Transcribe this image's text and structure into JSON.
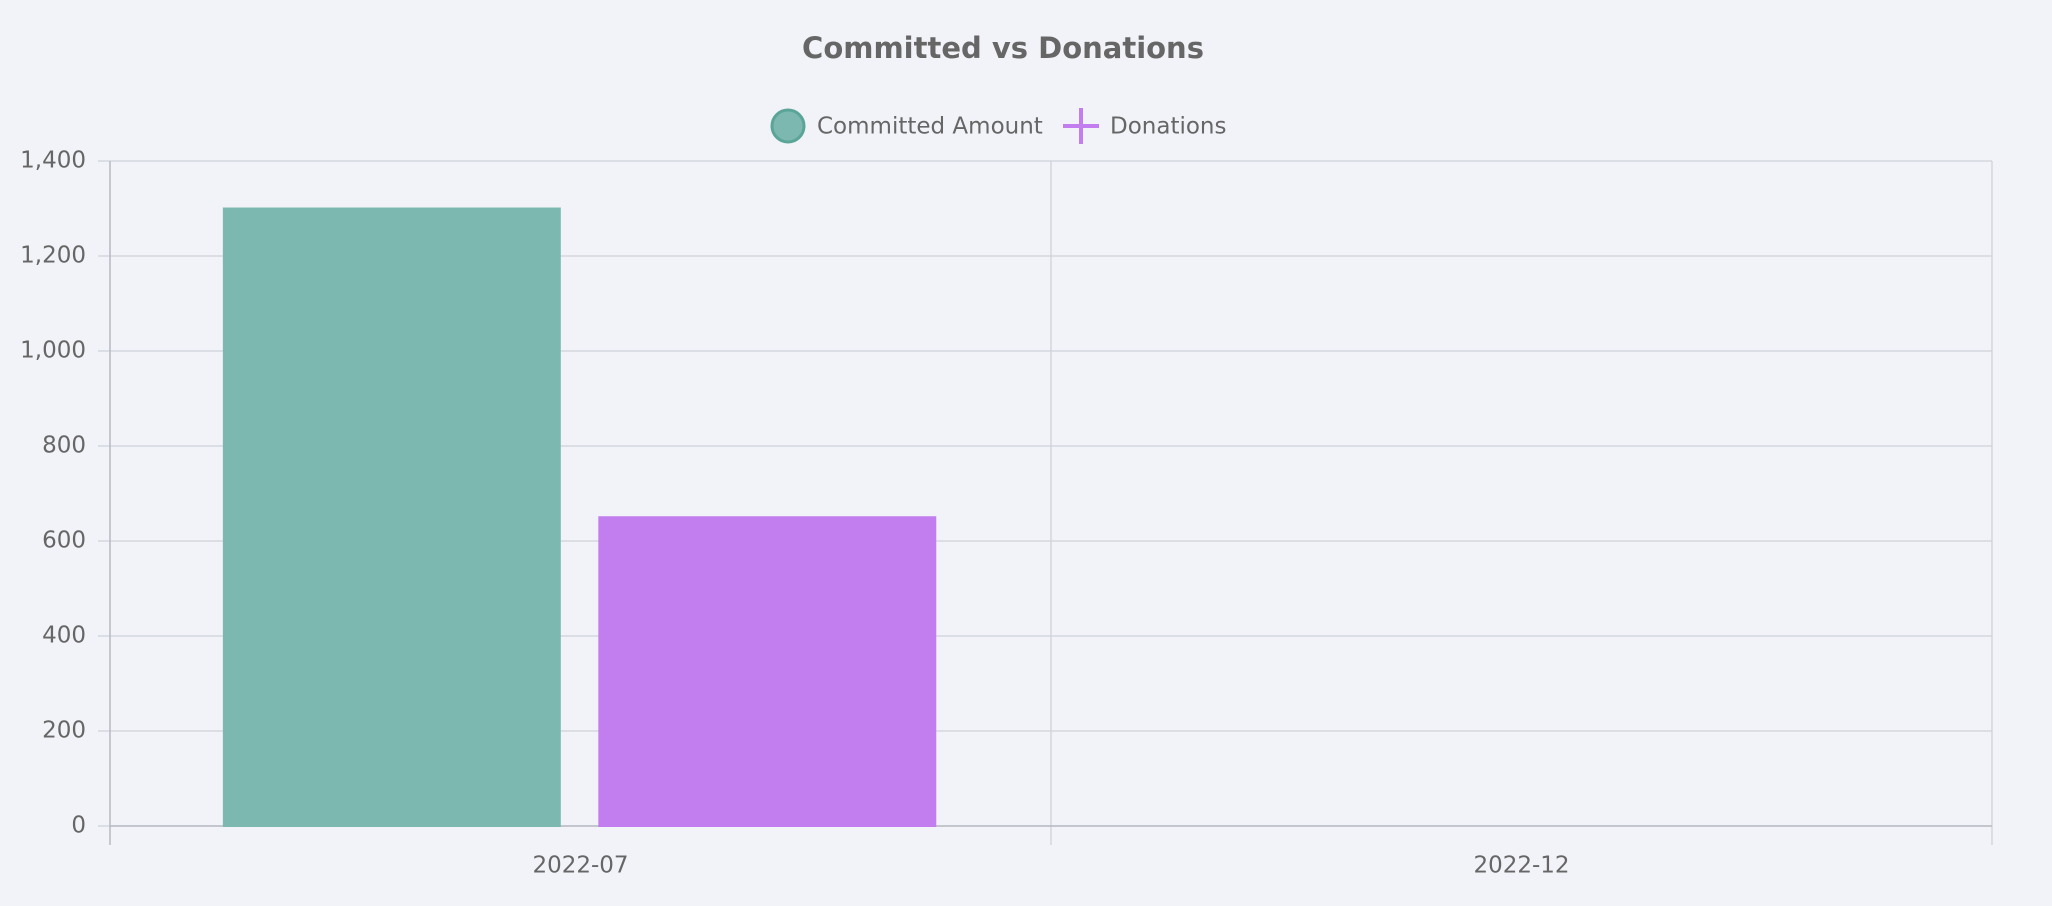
{
  "chart_data": {
    "type": "bar",
    "title": "Committed vs Donations",
    "categories": [
      "2022-07",
      "2022-12"
    ],
    "series": [
      {
        "name": "Committed Amount",
        "color": "#7cb8b0",
        "values": [
          1300,
          0
        ]
      },
      {
        "name": "Donations",
        "color": "#c27dee",
        "values": [
          650,
          0
        ]
      }
    ],
    "ylim": [
      0,
      1400
    ],
    "yticks": [
      0,
      200,
      400,
      600,
      800,
      {
        "value": 1000,
        "label": "1,000"
      },
      {
        "value": 1200,
        "label": "1,200"
      },
      {
        "value": 1400,
        "label": "1,400"
      }
    ],
    "grid": true,
    "legend_position": "top"
  }
}
